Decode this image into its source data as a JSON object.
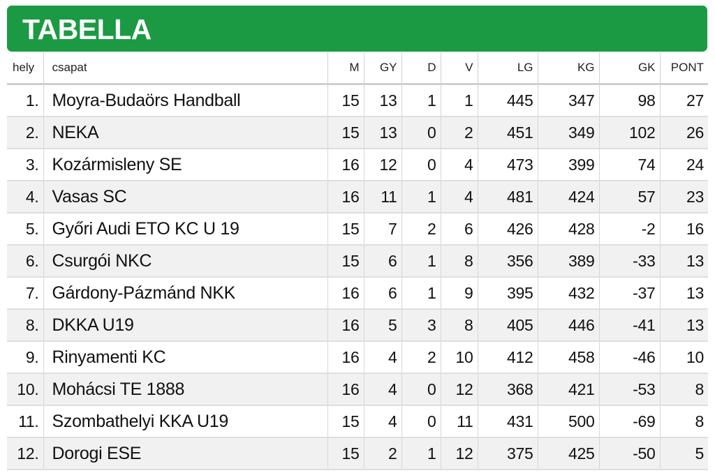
{
  "title": "TABELLA",
  "colors": {
    "header_bg": "#1b9a43",
    "header_text": "#ffffff",
    "row_alt": "#f1f1f1"
  },
  "columns": [
    "hely",
    "csapat",
    "M",
    "GY",
    "D",
    "V",
    "LG",
    "KG",
    "GK",
    "PONT"
  ],
  "rows": [
    [
      "1.",
      "Moyra-Budaörs Handball",
      "15",
      "13",
      "1",
      "1",
      "445",
      "347",
      "98",
      "27"
    ],
    [
      "2.",
      "NEKA",
      "15",
      "13",
      "0",
      "2",
      "451",
      "349",
      "102",
      "26"
    ],
    [
      "3.",
      "Kozármisleny SE",
      "16",
      "12",
      "0",
      "4",
      "473",
      "399",
      "74",
      "24"
    ],
    [
      "4.",
      "Vasas SC",
      "16",
      "11",
      "1",
      "4",
      "481",
      "424",
      "57",
      "23"
    ],
    [
      "5.",
      "Győri Audi ETO KC U 19",
      "15",
      "7",
      "2",
      "6",
      "426",
      "428",
      "-2",
      "16"
    ],
    [
      "6.",
      "Csurgói NKC",
      "15",
      "6",
      "1",
      "8",
      "356",
      "389",
      "-33",
      "13"
    ],
    [
      "7.",
      "Gárdony-Pázmánd NKK",
      "16",
      "6",
      "1",
      "9",
      "395",
      "432",
      "-37",
      "13"
    ],
    [
      "8.",
      "DKKA U19",
      "16",
      "5",
      "3",
      "8",
      "405",
      "446",
      "-41",
      "13"
    ],
    [
      "9.",
      "Rinyamenti KC",
      "16",
      "4",
      "2",
      "10",
      "412",
      "458",
      "-46",
      "10"
    ],
    [
      "10.",
      "Mohácsi TE 1888",
      "16",
      "4",
      "0",
      "12",
      "368",
      "421",
      "-53",
      "8"
    ],
    [
      "11.",
      "Szombathelyi KKA U19",
      "15",
      "4",
      "0",
      "11",
      "431",
      "500",
      "-69",
      "8"
    ],
    [
      "12.",
      "Dorogi ESE",
      "15",
      "2",
      "1",
      "12",
      "375",
      "425",
      "-50",
      "5"
    ]
  ]
}
